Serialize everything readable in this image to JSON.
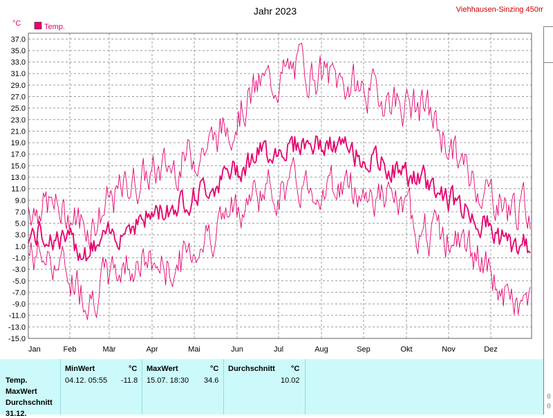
{
  "chart_data": {
    "type": "line",
    "title": "Jahr 2023",
    "station": "Viehhausen-Sinzing 450m",
    "yunit": "°C",
    "ylim": [
      -15.0,
      38.0
    ],
    "yticks": [
      "37.0",
      "35.0",
      "33.0",
      "31.0",
      "29.0",
      "27.0",
      "25.0",
      "23.0",
      "21.0",
      "19.0",
      "17.0",
      "15.0",
      "13.0",
      "11.0",
      "9.0",
      "7.0",
      "5.0",
      "3.0",
      "1.0",
      "-1.0",
      "-3.0",
      "-5.0",
      "-7.0",
      "-9.0",
      "-11.0",
      "-13.0",
      "-15.0"
    ],
    "months": [
      "Jan",
      "Feb",
      "Mär",
      "Apr",
      "Mai",
      "Jun",
      "Jul",
      "Aug",
      "Sep",
      "Okt",
      "Nov",
      "Dez"
    ],
    "grid": true,
    "legend_position": "top-left",
    "colors": {
      "series": "#e6006e",
      "background": "#ffffff",
      "grid": "#9a9a9a",
      "title_station": "#cc0000",
      "axis_label": "#e6006e"
    },
    "series": [
      {
        "name": "Temp.",
        "monthly_max": [
          10.5,
          7.0,
          14.5,
          17.5,
          22.0,
          31.0,
          34.6,
          32.0,
          29.5,
          27.0,
          15.5,
          10.0
        ],
        "monthly_mean": [
          3.0,
          0.0,
          5.0,
          8.0,
          12.0,
          17.0,
          19.0,
          18.0,
          15.0,
          12.0,
          7.0,
          1.0
        ],
        "monthly_min": [
          -3.0,
          -10.0,
          -4.0,
          -5.5,
          2.0,
          8.0,
          9.0,
          9.0,
          7.0,
          1.0,
          -2.0,
          -11.8
        ]
      }
    ]
  },
  "stats": {
    "rows": [
      "Temp.",
      "MaxWert",
      "Durchschnitt",
      "31.12."
    ],
    "min_header": "MinWert",
    "max_header": "MaxWert",
    "avg_header": "Durchschnitt",
    "unit": "°C",
    "min_date": "04.12.  05:55",
    "min_value": "-11.8",
    "max_date": "15.07.  18:30",
    "max_value": "34.6",
    "avg_value": "10.02"
  },
  "edge_text": [
    "0",
    "0"
  ]
}
